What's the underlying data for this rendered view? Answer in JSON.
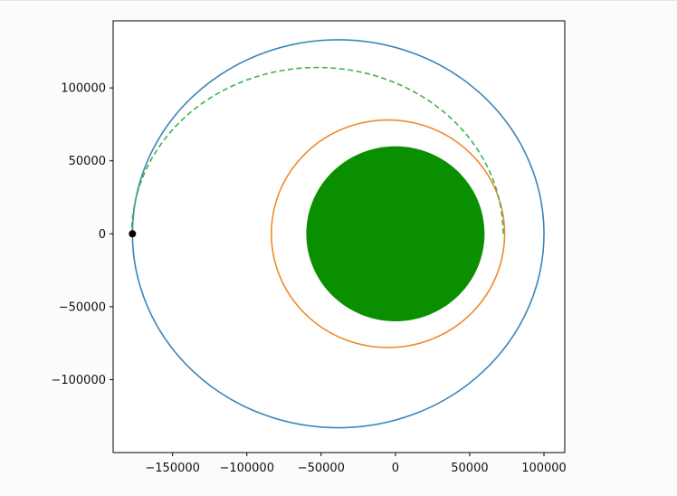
{
  "chart_data": {
    "type": "orbit-plot",
    "title": "",
    "xlabel": "",
    "ylabel": "",
    "xlim": [
      -190000,
      114000
    ],
    "ylim": [
      -150000,
      146000
    ],
    "grid": false,
    "legend": "none",
    "x_ticks": [
      {
        "value": -150000,
        "label": "−150000"
      },
      {
        "value": -100000,
        "label": "−100000"
      },
      {
        "value": -50000,
        "label": "−50000"
      },
      {
        "value": 0,
        "label": "0"
      },
      {
        "value": 50000,
        "label": "50000"
      },
      {
        "value": 100000,
        "label": "100000"
      }
    ],
    "y_ticks": [
      {
        "value": 100000,
        "label": "100000"
      },
      {
        "value": 50000,
        "label": "50000"
      },
      {
        "value": 0,
        "label": "0"
      },
      {
        "value": -50000,
        "label": "−50000"
      },
      {
        "value": -100000,
        "label": "−100000"
      }
    ],
    "series": [
      {
        "kind": "planet",
        "center": [
          0,
          0
        ],
        "radius": 60000,
        "color": "#0a8f00"
      },
      {
        "kind": "orbit-ellipse",
        "center": [
          -38500,
          0
        ],
        "semi_axes": [
          138500,
          133000
        ],
        "color": "#3a85b8",
        "style": "solid"
      },
      {
        "kind": "orbit-ellipse",
        "center": [
          -5000,
          0
        ],
        "semi_axes": [
          78500,
          78000
        ],
        "color": "#ef8a2e",
        "style": "solid"
      },
      {
        "kind": "transfer-arc",
        "center": [
          -52500,
          0
        ],
        "semi_axes": [
          125000,
          114000
        ],
        "from_deg": 0,
        "to_deg": 180,
        "color": "#3cb34a",
        "style": "dashed"
      },
      {
        "kind": "point",
        "x": -177000,
        "y": 0,
        "color": "#000000"
      }
    ]
  }
}
